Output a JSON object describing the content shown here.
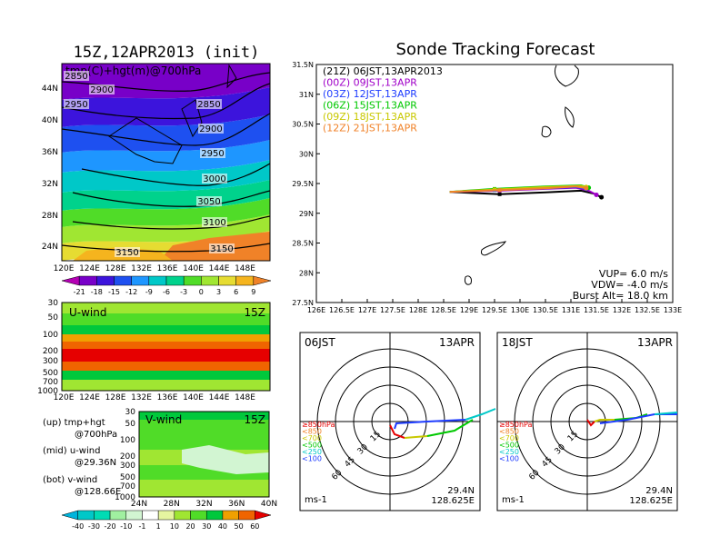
{
  "left": {
    "main_title": "15Z,12APR2013 (init)",
    "map_label": "tmp(C)+hgt(m)@700hPa",
    "lat_labels": [
      "44N",
      "40N",
      "36N",
      "32N",
      "28N",
      "24N"
    ],
    "lon_labels": [
      "120E",
      "124E",
      "128E",
      "132E",
      "136E",
      "140E",
      "144E",
      "148E"
    ],
    "contour_labels": [
      "2850",
      "2900",
      "2950",
      "2850",
      "2900",
      "2950",
      "3000",
      "3050",
      "3100",
      "3150",
      "3150"
    ],
    "temp_scale": [
      "-21",
      "-18",
      "-15",
      "-12",
      "-9",
      "-6",
      "-3",
      "0",
      "3",
      "6",
      "9"
    ],
    "temp_colors": [
      "#b400b4",
      "#7800c8",
      "#3c14dc",
      "#1e50f0",
      "#1e96ff",
      "#00c8c8",
      "#00d28c",
      "#50dc28",
      "#a0e632",
      "#e6dc32",
      "#f5b41e",
      "#f08228"
    ],
    "uwind_label": "U-wind",
    "uwind_time": "15Z",
    "vwind_label": "V-wind",
    "vwind_time": "15Z",
    "p_labels": [
      "30",
      "50",
      "100",
      "200",
      "300",
      "500",
      "700",
      "1000"
    ],
    "vlat_labels": [
      "24N",
      "28N",
      "32N",
      "36N",
      "40N"
    ],
    "notes": {
      "up1": "(up) tmp+hgt",
      "up2": "@700hPa",
      "mid1": "(mid) u-wind",
      "mid2": "@29.36N",
      "bot1": "(bot) v-wind",
      "bot2": "@128.66E"
    },
    "wind_scale": [
      "-40",
      "-30",
      "-20",
      "-10",
      "-1",
      "1",
      "10",
      "20",
      "30",
      "40",
      "50",
      "60"
    ],
    "wind_colors": [
      "#00b4dc",
      "#00c8c8",
      "#00dcb4",
      "#a0f0a0",
      "#d2f5d2",
      "#ffffff",
      "#e6f5a0",
      "#a0e632",
      "#50dc28",
      "#00c83c",
      "#f0a000",
      "#f06400",
      "#e60000"
    ]
  },
  "chart_data": [
    {
      "type": "line",
      "title": "Sonde Tracking Forecast",
      "xlim": [
        126,
        133
      ],
      "ylim": [
        27.5,
        31.5
      ],
      "x_ticks": [
        "126E",
        "126.5E",
        "127E",
        "127.5E",
        "128E",
        "128.5E",
        "129E",
        "129.5E",
        "130E",
        "130.5E",
        "131E",
        "131.5E",
        "132E",
        "132.5E",
        "133E"
      ],
      "y_ticks": [
        "27.5N",
        "28N",
        "28.5N",
        "29N",
        "29.5N",
        "30N",
        "30.5N",
        "31N",
        "31.5N"
      ],
      "legend": [
        "(21Z)  06JST,13APR2013",
        "(00Z)  09JST,13APR",
        "(03Z)  12JST,13APR",
        "(06Z)  15JST,13APR",
        "(09Z)  18JST,13APR",
        "(12Z)  21JST,13APR"
      ],
      "legend_placement": "top-left",
      "series": [
        {
          "name": "(21Z)  06JST,13APR2013",
          "color": "#000000",
          "x": [
            128.62,
            129.6,
            130.5,
            131.2,
            131.45,
            131.6
          ],
          "y": [
            29.36,
            29.32,
            29.35,
            29.38,
            29.33,
            29.27
          ]
        },
        {
          "name": "(00Z)  09JST,13APR",
          "color": "#a000c8",
          "x": [
            128.62,
            129.6,
            130.5,
            131.1,
            131.35,
            131.5
          ],
          "y": [
            29.36,
            29.38,
            29.41,
            29.43,
            29.38,
            29.31
          ]
        },
        {
          "name": "(03Z)  12JST,13APR",
          "color": "#1e3cff",
          "x": [
            128.62,
            129.5,
            130.5,
            131.1,
            131.3
          ],
          "y": [
            29.36,
            29.39,
            29.42,
            29.44,
            29.41
          ]
        },
        {
          "name": "(06Z)  15JST,13APR",
          "color": "#00c800",
          "x": [
            128.62,
            129.5,
            130.5,
            131.2,
            131.35
          ],
          "y": [
            29.36,
            29.41,
            29.45,
            29.47,
            29.43
          ]
        },
        {
          "name": "(09Z)  18JST,13APR",
          "color": "#c8c800",
          "x": [
            128.62,
            129.5,
            130.5,
            131.2,
            131.3
          ],
          "y": [
            29.36,
            29.4,
            29.44,
            29.46,
            29.44
          ]
        },
        {
          "name": "(12Z)  21JST,13APR",
          "color": "#f08228",
          "x": [
            128.62,
            129.6,
            130.5,
            131.1,
            131.3
          ],
          "y": [
            29.36,
            29.39,
            29.42,
            29.45,
            29.42
          ]
        }
      ],
      "annotation": [
        "VUP=  6.0  m/s",
        "VDW= -4.0  m/s",
        "Burst Alt=  18.0  km"
      ]
    }
  ],
  "hodo_left": {
    "time": "06JST",
    "date": "13APR",
    "unit": "ms-1",
    "lat": "29.4N",
    "lon": "128.625E",
    "ring_labels": [
      "15",
      "30",
      "45",
      "60"
    ]
  },
  "hodo_right": {
    "time": "18JST",
    "date": "13APR",
    "unit": "ms-1",
    "lat": "29.4N",
    "lon": "128.625E",
    "ring_labels": [
      "15",
      "30",
      "45",
      "60"
    ]
  },
  "pressure_legend": [
    {
      "label": "≥850hPa",
      "color": "#e60000"
    },
    {
      "label": "<850",
      "color": "#f08228"
    },
    {
      "label": "<700",
      "color": "#c8c800"
    },
    {
      "label": "<500",
      "color": "#00c800"
    },
    {
      "label": "<250",
      "color": "#00c8c8"
    },
    {
      "label": "<100",
      "color": "#1e3cff"
    }
  ]
}
